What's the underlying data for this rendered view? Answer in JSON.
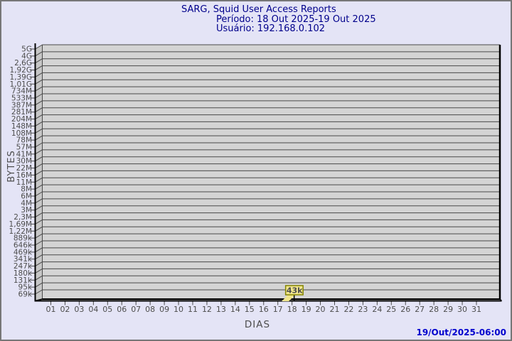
{
  "header": {
    "title": "SARG, Squid User Access Reports",
    "period": "Período: 18 Out 2025-19 Out 2025",
    "user": "Usuário: 192.168.0.102"
  },
  "chart_data": {
    "type": "line",
    "title": "SARG, Squid User Access Reports",
    "subtitle": [
      "Período: 18 Out 2025-19 Out 2025",
      "Usuário: 192.168.0.102"
    ],
    "xlabel": "DIAS",
    "ylabel": "BYTES",
    "y_scale": "log",
    "grid": true,
    "legend_position": "none",
    "x_ticks": [
      "01",
      "02",
      "03",
      "04",
      "05",
      "06",
      "07",
      "08",
      "09",
      "10",
      "11",
      "12",
      "13",
      "14",
      "15",
      "16",
      "17",
      "18",
      "19",
      "20",
      "21",
      "22",
      "23",
      "24",
      "25",
      "26",
      "27",
      "28",
      "29",
      "30",
      "31"
    ],
    "y_ticks": [
      "5G",
      "4G",
      "2,6G",
      "1,92G",
      "1,39G",
      "1,01G",
      "734M",
      "533M",
      "387M",
      "281M",
      "204M",
      "148M",
      "108M",
      "78M",
      "57M",
      "41M",
      "30M",
      "22M",
      "16M",
      "11M",
      "8M",
      "6M",
      "4M",
      "3M",
      "2,3M",
      "1,69M",
      "1,22M",
      "889k",
      "646k",
      "469k",
      "341k",
      "247k",
      "180k",
      "131k",
      "95k",
      "69k"
    ],
    "points": [
      {
        "x": "18",
        "label": "43k",
        "value_bytes": 43000
      }
    ]
  },
  "footer": {
    "timestamp": "19/Out/2025-06:00"
  },
  "colors": {
    "background": "#e4e4f6",
    "frame_border": "#777777",
    "plot_face": "#d4d4d4",
    "plot_side": "#c6c6c6",
    "gridline": "#4a4a4a",
    "axis": "#000000",
    "title_text": "#00008b",
    "tick_text": "#4d4d4d",
    "footer_text": "#0000cd",
    "flag_fill": "#f0e68c",
    "flag_border": "#848400",
    "flag_text": "#000000"
  }
}
